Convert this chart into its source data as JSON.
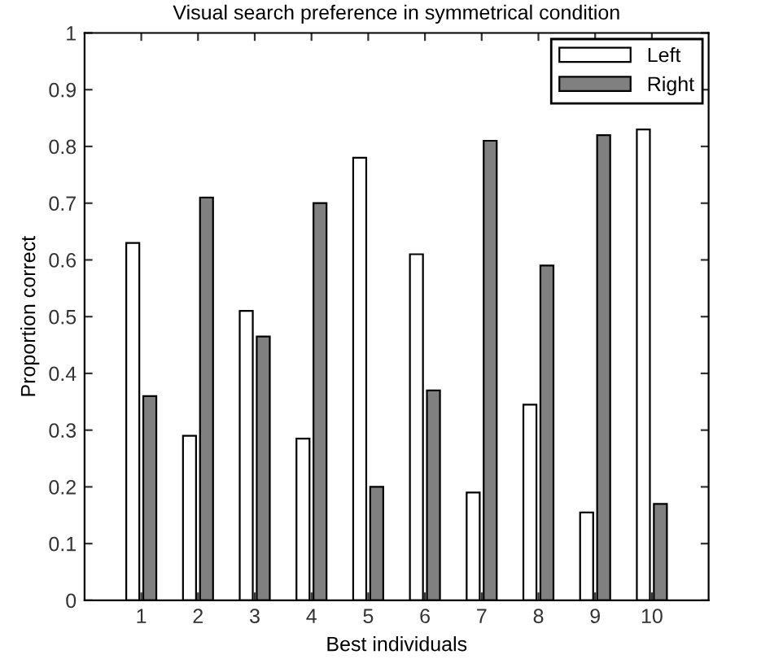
{
  "chart_data": {
    "type": "bar",
    "title": "Visual search preference in symmetrical condition",
    "xlabel": "Best individuals",
    "ylabel": "Proportion correct",
    "categories": [
      "1",
      "2",
      "3",
      "4",
      "5",
      "6",
      "7",
      "8",
      "9",
      "10"
    ],
    "series": [
      {
        "name": "Left",
        "color": "#ffffff",
        "values": [
          0.63,
          0.29,
          0.51,
          0.285,
          0.78,
          0.61,
          0.19,
          0.345,
          0.155,
          0.83
        ]
      },
      {
        "name": "Right",
        "color": "#808080",
        "values": [
          0.36,
          0.71,
          0.465,
          0.7,
          0.2,
          0.37,
          0.81,
          0.59,
          0.82,
          0.17
        ]
      }
    ],
    "ylim": [
      0,
      1
    ],
    "yticks": [
      0,
      0.1,
      0.2,
      0.3,
      0.4,
      0.5,
      0.6,
      0.7,
      0.8,
      0.9,
      1
    ],
    "grid": false,
    "legend": "top right"
  }
}
